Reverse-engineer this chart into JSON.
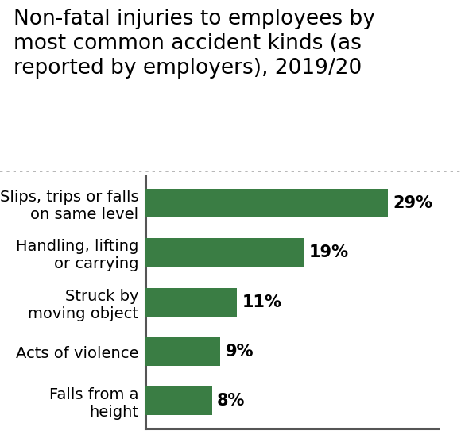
{
  "title": "Non-fatal injuries to employees by\nmost common accident kinds (as\nreported by employers), 2019/20",
  "categories": [
    "Falls from a\nheight",
    "Acts of violence",
    "Struck by\nmoving object",
    "Handling, lifting\nor carrying",
    "Slips, trips or falls\non same level"
  ],
  "values": [
    8,
    9,
    11,
    19,
    29
  ],
  "labels": [
    "8%",
    "9%",
    "11%",
    "19%",
    "29%"
  ],
  "bar_color": "#3a7d44",
  "background_color": "#ffffff",
  "title_fontsize": 19,
  "label_fontsize": 15,
  "category_fontsize": 14,
  "bar_height": 0.58,
  "xlim": [
    0,
    35
  ],
  "spine_color": "#555555",
  "dot_line_color": "#aaaaaa",
  "title_font_family": "sans-serif"
}
